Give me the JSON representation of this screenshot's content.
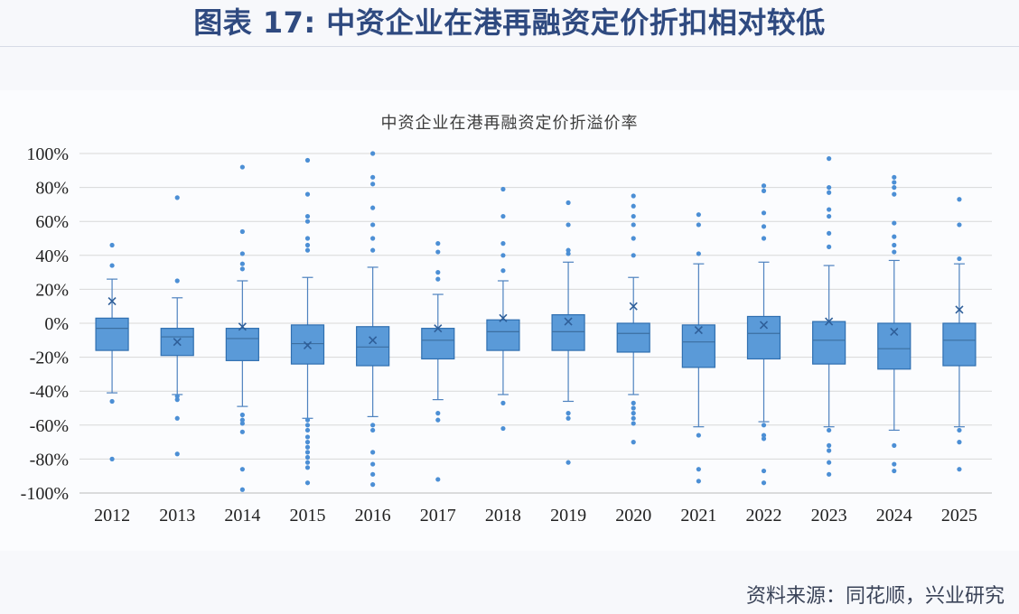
{
  "page": {
    "main_title": "图表 17: 中资企业在港再融资定价折扣相对较低",
    "source": "资料来源：同花顺，兴业研究"
  },
  "chart_data": {
    "type": "boxplot",
    "title": "中资企业在港再融资定价折溢价率",
    "xlabel": "",
    "ylabel": "",
    "ylim": [
      -100,
      100
    ],
    "y_ticks": [
      -100,
      -80,
      -60,
      -40,
      -20,
      0,
      20,
      40,
      60,
      80,
      100
    ],
    "y_tick_labels": [
      "-100%",
      "-80%",
      "-60%",
      "-40%",
      "-20%",
      "0%",
      "20%",
      "40%",
      "60%",
      "80%",
      "100%"
    ],
    "categories": [
      "2012",
      "2013",
      "2014",
      "2015",
      "2016",
      "2017",
      "2018",
      "2019",
      "2020",
      "2021",
      "2022",
      "2023",
      "2024",
      "2025"
    ],
    "grid": true,
    "colors": {
      "box_fill": "#5a9ad8",
      "box_stroke": "#2f6fb0",
      "median": "#3c6fa0",
      "whisker": "#4e82bf",
      "outlier": "#4c8fd5",
      "grid": "#d8d8d8",
      "axis": "#c7c7c7",
      "title_blue": "#2f4a80",
      "bg": "#f7f8fb"
    },
    "boxes": [
      {
        "year": "2012",
        "low": -41,
        "q1": -16,
        "median": -3,
        "q3": 3,
        "high": 26,
        "mean": 13,
        "outliers": [
          46,
          34,
          -46,
          -80
        ]
      },
      {
        "year": "2013",
        "low": -42,
        "q1": -19,
        "median": -8,
        "q3": -3,
        "high": 15,
        "mean": -11,
        "outliers": [
          74,
          25,
          -43,
          -45,
          -56,
          -77
        ]
      },
      {
        "year": "2014",
        "low": -49,
        "q1": -22,
        "median": -9,
        "q3": -3,
        "high": 25,
        "mean": -2,
        "outliers": [
          92,
          54,
          41,
          35,
          32,
          -54,
          -57,
          -59,
          -64,
          -86,
          -98
        ]
      },
      {
        "year": "2015",
        "low": -56,
        "q1": -24,
        "median": -12,
        "q3": -1,
        "high": 27,
        "mean": -13,
        "outliers": [
          96,
          76,
          63,
          60,
          50,
          46,
          43,
          -57,
          -60,
          -63,
          -67,
          -70,
          -73,
          -76,
          -79,
          -82,
          -85,
          -94
        ]
      },
      {
        "year": "2016",
        "low": -55,
        "q1": -25,
        "median": -14,
        "q3": -2,
        "high": 33,
        "mean": -10,
        "outliers": [
          100,
          86,
          82,
          68,
          58,
          50,
          43,
          -60,
          -63,
          -76,
          -83,
          -89,
          -95
        ]
      },
      {
        "year": "2017",
        "low": -45,
        "q1": -21,
        "median": -10,
        "q3": -3,
        "high": 17,
        "mean": -3,
        "outliers": [
          47,
          42,
          30,
          26,
          -53,
          -57,
          -92
        ]
      },
      {
        "year": "2018",
        "low": -42,
        "q1": -16,
        "median": -5,
        "q3": 2,
        "high": 25,
        "mean": 3,
        "outliers": [
          79,
          63,
          47,
          40,
          31,
          -47,
          -62
        ]
      },
      {
        "year": "2019",
        "low": -46,
        "q1": -16,
        "median": -5,
        "q3": 5,
        "high": 36,
        "mean": 1,
        "outliers": [
          71,
          58,
          43,
          41,
          -53,
          -56,
          -82
        ]
      },
      {
        "year": "2020",
        "low": -42,
        "q1": -17,
        "median": -6,
        "q3": 0,
        "high": 27,
        "mean": 10,
        "outliers": [
          75,
          69,
          63,
          58,
          50,
          40,
          -47,
          -50,
          -53,
          -56,
          -59,
          -70
        ]
      },
      {
        "year": "2021",
        "low": -61,
        "q1": -26,
        "median": -11,
        "q3": -1,
        "high": 35,
        "mean": -4,
        "outliers": [
          64,
          58,
          41,
          -66,
          -86,
          -93
        ]
      },
      {
        "year": "2022",
        "low": -58,
        "q1": -21,
        "median": -6,
        "q3": 4,
        "high": 36,
        "mean": -1,
        "outliers": [
          81,
          78,
          65,
          57,
          50,
          -60,
          -66,
          -68,
          -87,
          -94
        ]
      },
      {
        "year": "2023",
        "low": -61,
        "q1": -24,
        "median": -10,
        "q3": 1,
        "high": 34,
        "mean": 1,
        "outliers": [
          97,
          80,
          77,
          67,
          63,
          53,
          45,
          -63,
          -72,
          -75,
          -82,
          -89
        ]
      },
      {
        "year": "2024",
        "low": -63,
        "q1": -27,
        "median": -15,
        "q3": 0,
        "high": 37,
        "mean": -5,
        "outliers": [
          86,
          83,
          80,
          76,
          59,
          51,
          46,
          42,
          -72,
          -83,
          -87
        ]
      },
      {
        "year": "2025",
        "low": -61,
        "q1": -25,
        "median": -10,
        "q3": 0,
        "high": 35,
        "mean": 8,
        "outliers": [
          73,
          58,
          38,
          -63,
          -70,
          -86
        ]
      }
    ]
  }
}
